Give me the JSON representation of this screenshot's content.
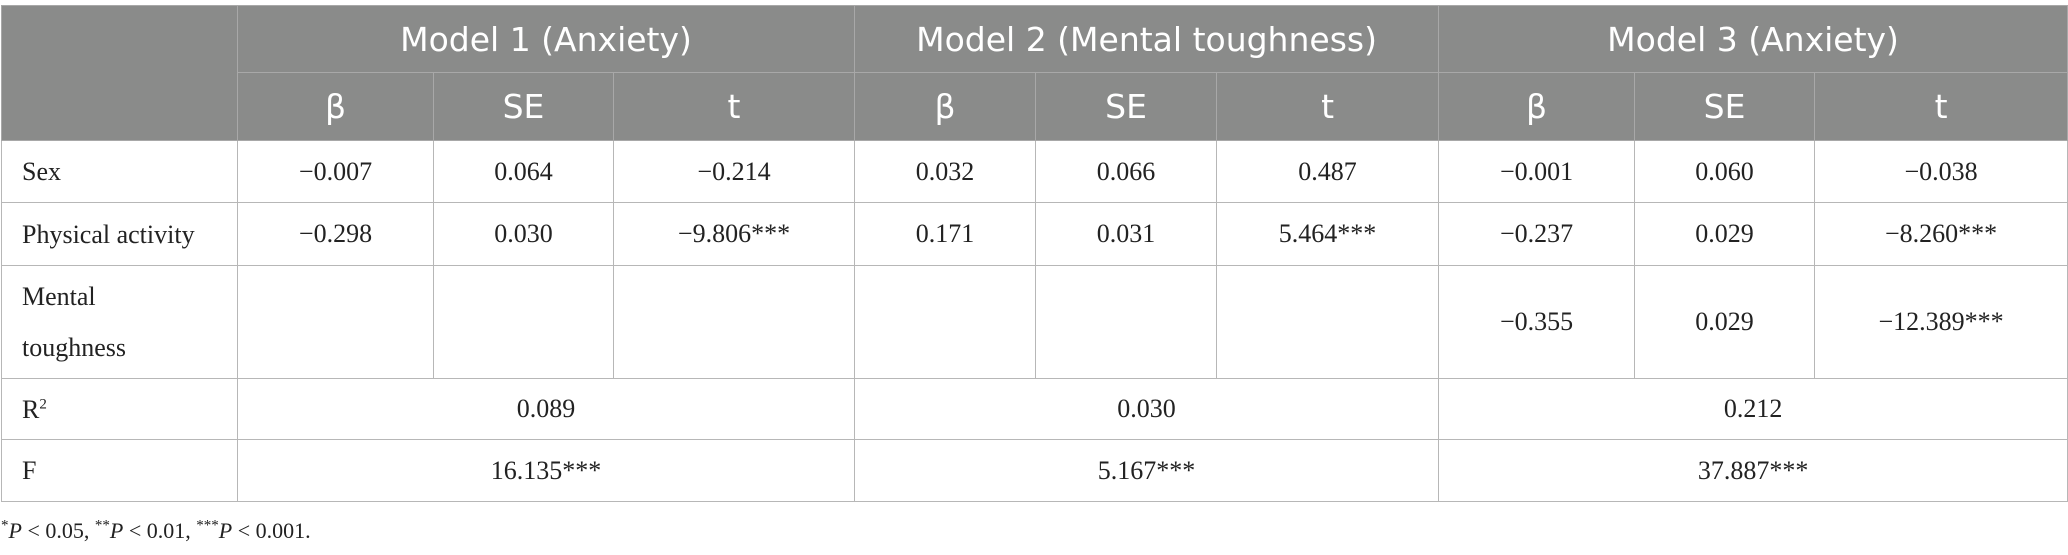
{
  "table": {
    "models": [
      {
        "title": "Model 1 (Anxiety)"
      },
      {
        "title": "Model 2 (Mental toughness)"
      },
      {
        "title": "Model 3 (Anxiety)"
      }
    ],
    "subheaders": [
      "β",
      "SE",
      "t",
      "β",
      "SE",
      "t",
      "β",
      "SE",
      "t"
    ],
    "rows": [
      {
        "label": "Sex",
        "cells": [
          "−0.007",
          "0.064",
          "−0.214",
          "0.032",
          "0.066",
          "0.487",
          "−0.001",
          "0.060",
          "−0.038"
        ]
      },
      {
        "label": "Physical activity",
        "cells": [
          "−0.298",
          "0.030",
          "−9.806***",
          "0.171",
          "0.031",
          "5.464***",
          "−0.237",
          "0.029",
          "−8.260***"
        ]
      },
      {
        "label_line1": "Mental",
        "label_line2": "toughness",
        "cells": [
          "",
          "",
          "",
          "",
          "",
          "",
          "−0.355",
          "0.029",
          "−12.389***"
        ]
      }
    ],
    "r2": {
      "label": "R",
      "label_sup": "2",
      "values": [
        "0.089",
        "0.030",
        "0.212"
      ]
    },
    "f": {
      "label": "F",
      "values": [
        "16.135***",
        "5.167***",
        "37.887***"
      ]
    }
  },
  "footnote": {
    "s1": "*",
    "p1": "P",
    "t1": " < 0.05, ",
    "s2": "**",
    "p2": "P",
    "t2": " < 0.01, ",
    "s3": "***",
    "p3": "P",
    "t3": " < 0.001."
  }
}
